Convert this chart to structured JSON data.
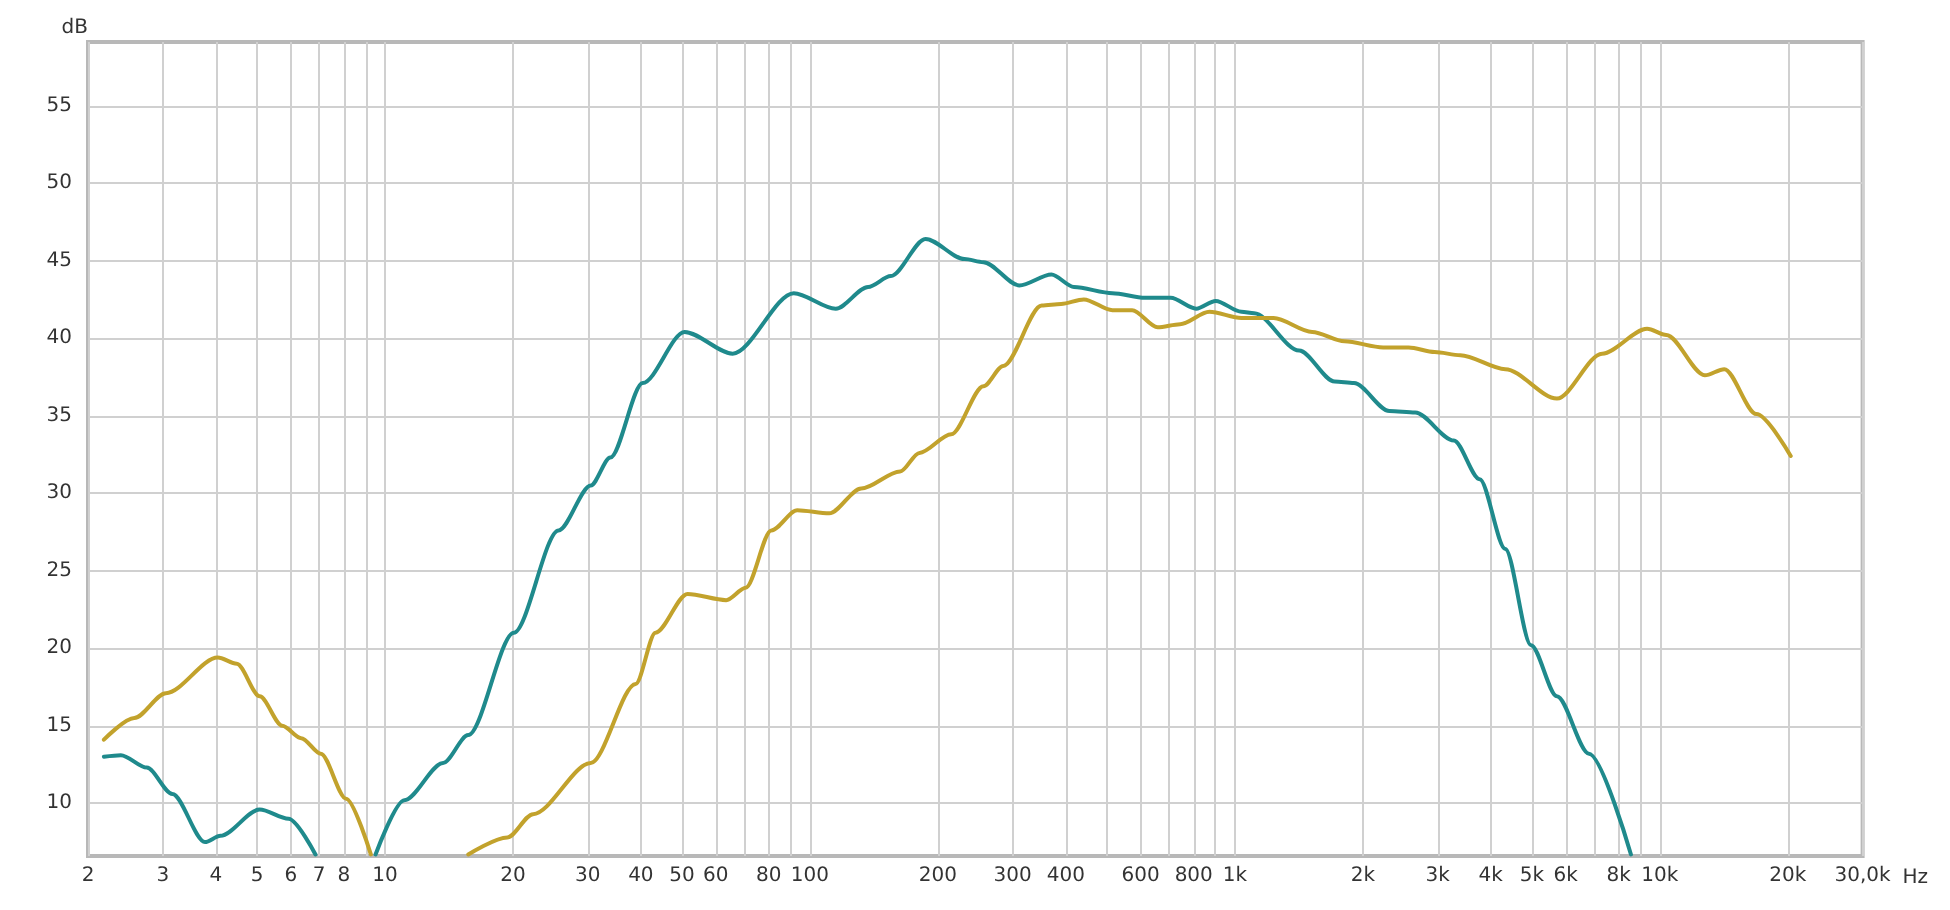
{
  "chart_data": {
    "type": "line",
    "xlabel": "Hz",
    "ylabel": "dB",
    "log": "x",
    "grid": true,
    "marker": "none",
    "line_style": "solid",
    "xlim": [
      2,
      30000
    ],
    "ylim": [
      6.6,
      59.1
    ],
    "xticks": [
      2,
      3,
      4,
      5,
      6,
      7,
      8,
      {
        "value": 9,
        "label": null
      },
      10,
      20,
      30,
      40,
      50,
      60,
      {
        "value": 70,
        "label": null
      },
      80,
      {
        "value": 90,
        "label": null
      },
      100,
      200,
      300,
      400,
      {
        "value": 500,
        "label": null
      },
      600,
      {
        "value": 700,
        "label": null
      },
      800,
      {
        "value": 900,
        "label": null
      },
      {
        "value": 1000,
        "label": "1k"
      },
      {
        "value": 2000,
        "label": "2k"
      },
      {
        "value": 3000,
        "label": "3k"
      },
      {
        "value": 4000,
        "label": "4k"
      },
      {
        "value": 5000,
        "label": "5k"
      },
      {
        "value": 6000,
        "label": "6k"
      },
      {
        "value": 7000,
        "label": null
      },
      {
        "value": 8000,
        "label": "8k"
      },
      {
        "value": 9000,
        "label": null
      },
      {
        "value": 10000,
        "label": "10k"
      },
      {
        "value": 20000,
        "label": "20k"
      },
      {
        "value": 30000,
        "label": "30,0k"
      }
    ],
    "yticks": [
      10,
      15,
      20,
      25,
      30,
      35,
      40,
      45,
      50,
      55
    ],
    "series": [
      {
        "color": "#1f8a8c",
        "x": [
          2.18,
          2.39,
          2.75,
          3.16,
          3.77,
          4.1,
          5.07,
          5.93,
          6.86,
          8,
          9.5,
          11.1,
          13.7,
          15.7,
          20.1,
          25.6,
          30.5,
          33.9,
          40.4,
          50.7,
          65.8,
          91.6,
          115,
          137,
          155,
          187,
          231,
          256,
          311,
          370,
          418,
          515,
          614,
          706,
          811,
          901,
          1036,
          1110,
          1416,
          1717,
          1906,
          2310,
          2656,
          3275,
          3768,
          4328,
          4975,
          5725,
          6810,
          8550
        ],
        "values": [
          13.0,
          13.1,
          12.3,
          10.6,
          7.5,
          7.9,
          9.6,
          9.0,
          6.7,
          null,
          6.7,
          10.2,
          12.6,
          14.4,
          21.0,
          27.6,
          30.5,
          32.3,
          37.1,
          40.4,
          39.0,
          42.9,
          41.9,
          43.3,
          44.0,
          46.4,
          45.1,
          44.9,
          43.4,
          44.1,
          43.3,
          42.9,
          42.6,
          42.6,
          41.9,
          42.4,
          41.7,
          41.6,
          39.2,
          37.2,
          37.1,
          35.3,
          35.2,
          33.4,
          30.9,
          26.4,
          20.2,
          16.9,
          13.2,
          6.7
        ]
      },
      {
        "color": "#c2a22c",
        "x": [
          2.18,
          2.57,
          3.05,
          4.04,
          4.48,
          5.07,
          5.73,
          6.35,
          7.06,
          8.1,
          9.26,
          12,
          15.7,
          19.4,
          22.3,
          30.5,
          38.9,
          43.3,
          51.5,
          63.5,
          70.6,
          81.1,
          93.3,
          111,
          132,
          163,
          181,
          215,
          256,
          285,
          351,
          390,
          441,
          515,
          573,
          658,
          743,
          871,
          1036,
          1233,
          1520,
          1811,
          2233,
          2564,
          2951,
          3392,
          4328,
          5725,
          7311,
          9333,
          10360,
          12760,
          14180,
          16870,
          20320
        ],
        "values": [
          14.1,
          15.5,
          17.1,
          19.4,
          19.0,
          16.9,
          15.0,
          14.2,
          13.2,
          10.3,
          6.7,
          null,
          6.7,
          7.8,
          9.3,
          12.6,
          17.7,
          21.0,
          23.5,
          23.1,
          23.9,
          27.6,
          28.9,
          28.7,
          30.3,
          31.4,
          32.6,
          33.8,
          36.9,
          38.2,
          42.1,
          42.2,
          42.5,
          41.8,
          41.8,
          40.7,
          40.9,
          41.7,
          41.3,
          41.3,
          40.4,
          39.8,
          39.4,
          39.4,
          39.1,
          38.9,
          38.0,
          36.1,
          39.0,
          40.6,
          40.2,
          37.6,
          38.0,
          35.1,
          32.4
        ]
      }
    ]
  }
}
